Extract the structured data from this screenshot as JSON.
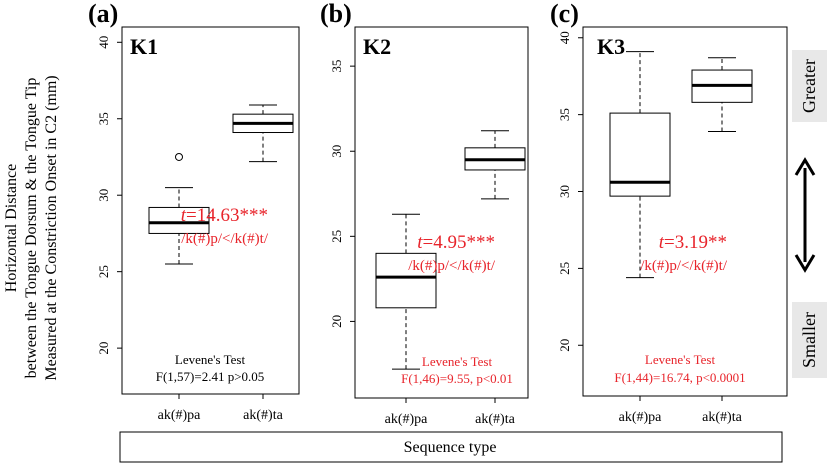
{
  "figure": {
    "ylabel_lines": [
      "Horizontal Distance",
      "between the Tongue Dorsum & the Tongue Tip",
      "Measured at the Constriction Onset in C2 (mm)"
    ],
    "xlabel": "Sequence type",
    "side_top": "Greater",
    "side_bottom": "Smaller",
    "colors": {
      "significant": "#e8242b",
      "normal": "#000000",
      "side_box": "#e8e8e8"
    }
  },
  "chart_data": [
    {
      "type": "box",
      "panel": "(a)",
      "title": "K1",
      "ylim": [
        17,
        41
      ],
      "yticks": [
        20,
        25,
        30,
        35,
        40
      ],
      "categories": [
        "ak(#)pa",
        "ak(#)ta"
      ],
      "boxes": [
        {
          "min": 25.5,
          "q1": 27.5,
          "median": 28.2,
          "q3": 29.2,
          "max": 30.5,
          "outliers": [
            32.5
          ]
        },
        {
          "min": 32.2,
          "q1": 34.1,
          "median": 34.7,
          "q3": 35.3,
          "max": 35.9,
          "outliers": []
        }
      ],
      "t_stat": "t=14.63***",
      "comparison": "/k(#)p/</k(#)t/",
      "levene_title": "Levene's Test",
      "levene_stat": "F(1,57)=2.41 p>0.05",
      "levene_significant": false
    },
    {
      "type": "box",
      "panel": "(b)",
      "title": "K2",
      "ylim": [
        15.5,
        37.3
      ],
      "yticks": [
        20,
        25,
        30,
        35
      ],
      "categories": [
        "ak(#)pa",
        "ak(#)ta"
      ],
      "boxes": [
        {
          "min": 17.2,
          "q1": 20.8,
          "median": 22.6,
          "q3": 24.0,
          "max": 26.3,
          "outliers": []
        },
        {
          "min": 27.2,
          "q1": 28.9,
          "median": 29.5,
          "q3": 30.2,
          "max": 31.2,
          "outliers": []
        }
      ],
      "t_stat": "t=4.95***",
      "comparison": "/k(#)p/</k(#)t/",
      "levene_title": "Levene's Test",
      "levene_stat": "F(1,46)=9.55, p<0.01",
      "levene_significant": true
    },
    {
      "type": "box",
      "panel": "(c)",
      "title": "K3",
      "ylim": [
        16.7,
        40.7
      ],
      "yticks": [
        20,
        25,
        30,
        35,
        40
      ],
      "categories": [
        "ak(#)pa",
        "ak(#)ta"
      ],
      "boxes": [
        {
          "min": 24.4,
          "q1": 29.7,
          "median": 30.6,
          "q3": 35.1,
          "max": 39.1,
          "outliers": []
        },
        {
          "min": 33.9,
          "q1": 35.8,
          "median": 36.9,
          "q3": 37.9,
          "max": 38.7,
          "outliers": []
        }
      ],
      "t_stat": "t=3.19**",
      "comparison": "/k(#)p/</k(#)t/",
      "levene_title": "Levene's Test",
      "levene_stat": "F(1,44)=16.74, p<0.0001",
      "levene_significant": true
    }
  ]
}
